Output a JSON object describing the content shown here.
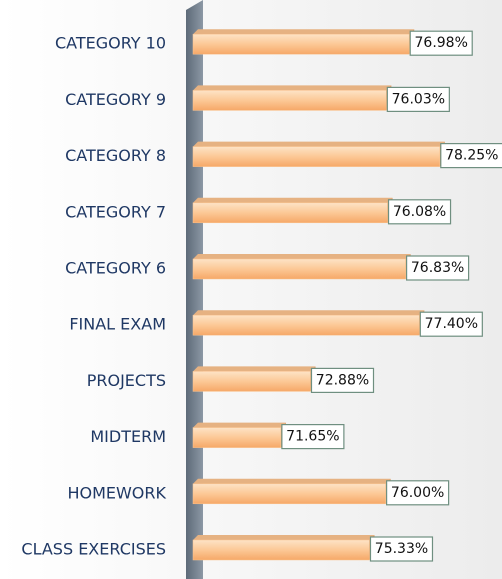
{
  "chart_data": {
    "type": "bar",
    "orientation": "horizontal",
    "categories": [
      "CLASS EXERCISES",
      "HOMEWORK",
      "MIDTERM",
      "PROJECTS",
      "FINAL EXAM",
      "CATEGORY 6",
      "CATEGORY 7",
      "CATEGORY 8",
      "CATEGORY 9",
      "CATEGORY 10"
    ],
    "values": [
      75.33,
      76.0,
      71.65,
      72.88,
      77.4,
      76.83,
      76.08,
      78.25,
      76.03,
      76.98
    ],
    "value_labels": [
      "75.33%",
      "76.00%",
      "71.65%",
      "72.88%",
      "77.40%",
      "76.83%",
      "76.08%",
      "78.25%",
      "76.03%",
      "76.98%"
    ],
    "color": "#fbc48f",
    "xlim": [
      68,
      81
    ]
  }
}
